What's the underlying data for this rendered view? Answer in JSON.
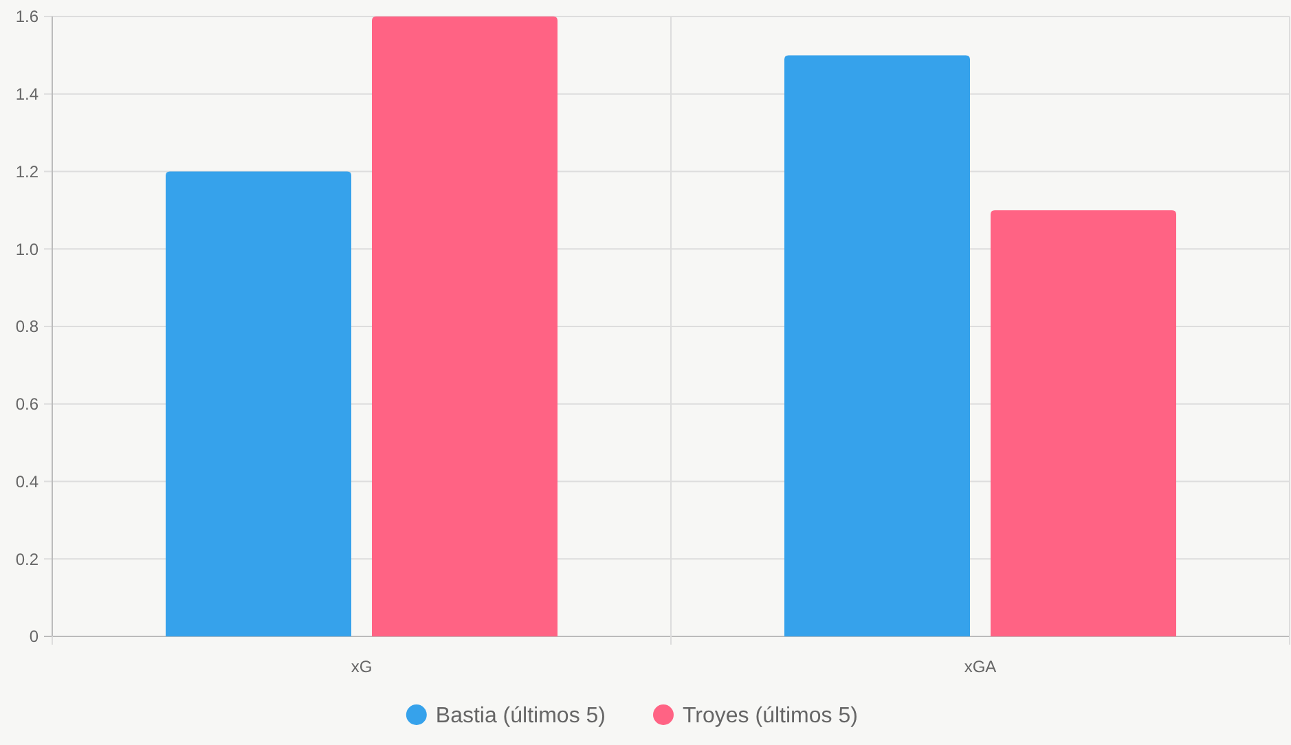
{
  "chart_data": {
    "type": "bar",
    "categories": [
      "xG",
      "xGA"
    ],
    "series": [
      {
        "name": "Bastia (últimos 5)",
        "color": "#36a2eb",
        "values": [
          1.2,
          1.5
        ]
      },
      {
        "name": "Troyes (últimos 5)",
        "color": "#ff6384",
        "values": [
          1.6,
          1.1
        ]
      }
    ],
    "ylim": [
      0,
      1.6
    ],
    "yticks": [
      0,
      {
        "value": 0.2,
        "label": "0.2"
      },
      {
        "value": 0.4,
        "label": "0.4"
      },
      {
        "value": 0.6,
        "label": "0.6"
      },
      {
        "value": 0.8,
        "label": "0.8"
      },
      {
        "value": 1,
        "label": "1.0"
      },
      {
        "value": 1.2,
        "label": "1.2"
      },
      {
        "value": 1.4,
        "label": "1.4"
      },
      {
        "value": 1.6,
        "label": "1.6"
      }
    ],
    "grid": true,
    "legend": "bottom"
  }
}
